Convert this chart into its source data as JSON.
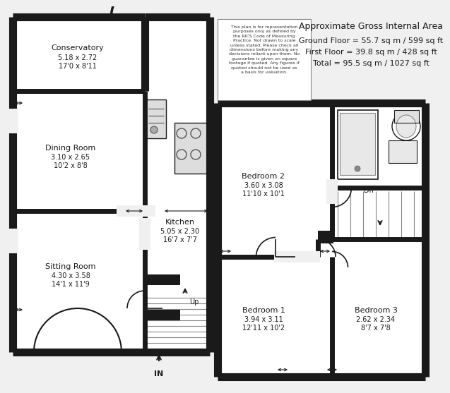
{
  "bg_color": "#f0f0f0",
  "wall_color": "#1a1a1a",
  "white": "#ffffff",
  "title_text": "Approximate Gross Internal Area",
  "line1": "Ground Floor = 55.7 sq m / 599 sq ft",
  "line2": "First Floor = 39.8 sq m / 428 sq ft",
  "line3": "Total = 95.5 sq m / 1027 sq ft",
  "disclaimer": "This plan is for representation\npurposes only as defined by\nthe RICS Code of Measuring\nPractice. Not drawn to scale\nunless stated. Please check all\ndimensions before making any\ndecisions reliant upon them. No\nguarantee is given on square\nfootage if quoted. Any figures if\nquoted should not be used as\na basis for valuation.",
  "rooms": {
    "conservatory": {
      "label": "Conservatory",
      "dim1": "5.18 x 2.72",
      "dim2": "17'0 x 8'11"
    },
    "dining": {
      "label": "Dining Room",
      "dim1": "3.10 x 2.65",
      "dim2": "10'2 x 8'8"
    },
    "kitchen": {
      "label": "Kitchen",
      "dim1": "5.05 x 2.30",
      "dim2": "16'7 x 7'7"
    },
    "sitting": {
      "label": "Sitting Room",
      "dim1": "4.30 x 3.58",
      "dim2": "14'1 x 11'9"
    },
    "bed2": {
      "label": "Bedroom 2",
      "dim1": "3.60 x 3.08",
      "dim2": "11'10 x 10'1"
    },
    "bed1": {
      "label": "Bedroom 1",
      "dim1": "3.94 x 3.11",
      "dim2": "12'11 x 10'2"
    },
    "bed3": {
      "label": "Bedroom 3",
      "dim1": "2.62 x 2.34",
      "dim2": "8'7 x 7'8"
    }
  }
}
